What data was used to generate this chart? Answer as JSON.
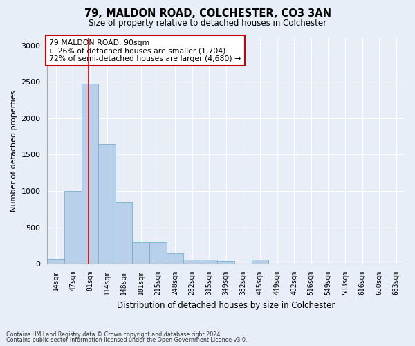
{
  "title1": "79, MALDON ROAD, COLCHESTER, CO3 3AN",
  "title2": "Size of property relative to detached houses in Colchester",
  "xlabel": "Distribution of detached houses by size in Colchester",
  "ylabel": "Number of detached properties",
  "footnote1": "Contains HM Land Registry data © Crown copyright and database right 2024.",
  "footnote2": "Contains public sector information licensed under the Open Government Licence v3.0.",
  "annotation_line1": "79 MALDON ROAD: 90sqm",
  "annotation_line2": "← 26% of detached houses are smaller (1,704)",
  "annotation_line3": "72% of semi-detached houses are larger (4,680) →",
  "bar_labels": [
    "14sqm",
    "47sqm",
    "81sqm",
    "114sqm",
    "148sqm",
    "181sqm",
    "215sqm",
    "248sqm",
    "282sqm",
    "315sqm",
    "349sqm",
    "382sqm",
    "415sqm",
    "449sqm",
    "482sqm",
    "516sqm",
    "549sqm",
    "583sqm",
    "616sqm",
    "650sqm",
    "683sqm"
  ],
  "bar_values": [
    70,
    1000,
    2470,
    1650,
    850,
    300,
    300,
    140,
    60,
    55,
    40,
    5,
    55,
    5,
    0,
    0,
    0,
    0,
    0,
    0,
    0
  ],
  "bar_color": "#b8d0ea",
  "bar_edge_color": "#7aadcf",
  "red_line_x": 2.0,
  "ylim": [
    0,
    3100
  ],
  "yticks": [
    0,
    500,
    1000,
    1500,
    2000,
    2500,
    3000
  ],
  "background_color": "#e8eef8",
  "grid_color": "#ffffff",
  "annotation_box_facecolor": "#ffffff",
  "annotation_box_edgecolor": "#cc0000"
}
